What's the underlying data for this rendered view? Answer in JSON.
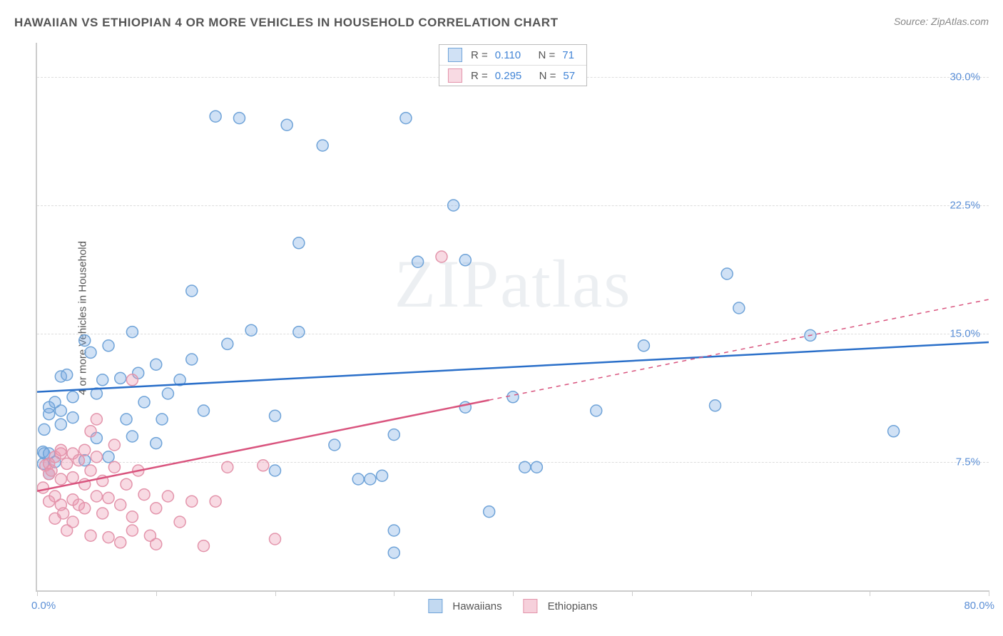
{
  "title": "HAWAIIAN VS ETHIOPIAN 4 OR MORE VEHICLES IN HOUSEHOLD CORRELATION CHART",
  "source": "Source: ZipAtlas.com",
  "watermark": "ZIPatlas",
  "ylabel": "4 or more Vehicles in Household",
  "chart": {
    "type": "scatter",
    "background_color": "#ffffff",
    "grid_color": "#dddddd",
    "axis_color": "#cccccc",
    "tick_label_color": "#5b8fd6",
    "label_color": "#555555",
    "title_color": "#555555",
    "title_fontsize": 17,
    "label_fontsize": 15,
    "tick_fontsize": 15,
    "xlim": [
      0,
      80
    ],
    "ylim": [
      0,
      32
    ],
    "xlim_labels": {
      "min": "0.0%",
      "max": "80.0%"
    },
    "yticks": [
      {
        "value": 7.5,
        "label": "7.5%"
      },
      {
        "value": 15.0,
        "label": "15.0%"
      },
      {
        "value": 22.5,
        "label": "22.5%"
      },
      {
        "value": 30.0,
        "label": "30.0%"
      }
    ],
    "xtick_positions": [
      0,
      10,
      20,
      30,
      40,
      50,
      60,
      70,
      80
    ],
    "marker_radius": 8,
    "marker_stroke_width": 1.5,
    "line_width": 2.5,
    "series": [
      {
        "name": "Hawaiians",
        "fill": "rgba(120,170,225,0.35)",
        "stroke": "#6fa3d8",
        "line_color": "#2a6fc9",
        "R_label": "R =",
        "R": "0.110",
        "N_label": "N =",
        "N": "71",
        "regression": {
          "x1": 0,
          "y1": 11.6,
          "x2": 80,
          "y2": 14.5,
          "solid_until_x": 80
        },
        "points": [
          [
            0.5,
            7.4
          ],
          [
            0.5,
            8.1
          ],
          [
            0.6,
            8.0
          ],
          [
            0.6,
            9.4
          ],
          [
            1,
            10.3
          ],
          [
            1,
            10.7
          ],
          [
            1,
            8.0
          ],
          [
            1,
            6.8
          ],
          [
            1.5,
            11.0
          ],
          [
            1.5,
            7.5
          ],
          [
            2,
            9.7
          ],
          [
            2,
            10.5
          ],
          [
            2,
            12.5
          ],
          [
            2.5,
            12.6
          ],
          [
            3,
            11.3
          ],
          [
            3,
            10.1
          ],
          [
            4,
            14.6
          ],
          [
            4,
            7.6
          ],
          [
            4.5,
            13.9
          ],
          [
            5,
            11.5
          ],
          [
            5,
            8.9
          ],
          [
            5.5,
            12.3
          ],
          [
            6,
            14.3
          ],
          [
            6,
            7.8
          ],
          [
            7,
            12.4
          ],
          [
            7.5,
            10.0
          ],
          [
            8,
            15.1
          ],
          [
            8,
            9.0
          ],
          [
            8.5,
            12.7
          ],
          [
            9,
            11.0
          ],
          [
            10,
            13.2
          ],
          [
            10,
            8.6
          ],
          [
            10.5,
            10.0
          ],
          [
            11,
            11.5
          ],
          [
            12,
            12.3
          ],
          [
            13,
            13.5
          ],
          [
            13,
            17.5
          ],
          [
            14,
            10.5
          ],
          [
            15,
            27.7
          ],
          [
            16,
            14.4
          ],
          [
            17,
            27.6
          ],
          [
            18,
            15.2
          ],
          [
            20,
            10.2
          ],
          [
            20,
            7.0
          ],
          [
            21,
            27.2
          ],
          [
            22,
            20.3
          ],
          [
            22,
            15.1
          ],
          [
            24,
            26.0
          ],
          [
            25,
            8.5
          ],
          [
            27,
            6.5
          ],
          [
            28,
            6.5
          ],
          [
            29,
            6.7
          ],
          [
            30,
            2.2
          ],
          [
            30,
            3.5
          ],
          [
            30,
            9.1
          ],
          [
            31,
            27.6
          ],
          [
            32,
            19.2
          ],
          [
            35,
            22.5
          ],
          [
            36,
            19.3
          ],
          [
            36,
            10.7
          ],
          [
            38,
            4.6
          ],
          [
            40,
            11.3
          ],
          [
            41,
            7.2
          ],
          [
            42,
            7.2
          ],
          [
            47,
            10.5
          ],
          [
            51,
            14.3
          ],
          [
            58,
            18.5
          ],
          [
            59,
            16.5
          ],
          [
            65,
            14.9
          ],
          [
            72,
            9.3
          ],
          [
            57,
            10.8
          ]
        ]
      },
      {
        "name": "Ethiopians",
        "fill": "rgba(235,150,175,0.35)",
        "stroke": "#e394ab",
        "line_color": "#d9547e",
        "R_label": "R =",
        "R": "0.295",
        "N_label": "N =",
        "N": "57",
        "regression": {
          "x1": 0,
          "y1": 5.8,
          "x2": 80,
          "y2": 17.0,
          "solid_until_x": 38
        },
        "points": [
          [
            0.5,
            6.0
          ],
          [
            0.7,
            7.3
          ],
          [
            1,
            6.8
          ],
          [
            1,
            7.4
          ],
          [
            1,
            5.2
          ],
          [
            1.2,
            7.0
          ],
          [
            1.5,
            7.8
          ],
          [
            1.5,
            5.5
          ],
          [
            1.5,
            4.2
          ],
          [
            2,
            8.0
          ],
          [
            2,
            8.2
          ],
          [
            2,
            6.5
          ],
          [
            2,
            5.0
          ],
          [
            2.2,
            4.5
          ],
          [
            2.5,
            7.4
          ],
          [
            2.5,
            3.5
          ],
          [
            3,
            8.0
          ],
          [
            3,
            6.6
          ],
          [
            3,
            5.3
          ],
          [
            3,
            4.0
          ],
          [
            3.5,
            7.6
          ],
          [
            3.5,
            5.0
          ],
          [
            4,
            8.2
          ],
          [
            4,
            6.2
          ],
          [
            4,
            4.8
          ],
          [
            4.5,
            9.3
          ],
          [
            4.5,
            7.0
          ],
          [
            4.5,
            3.2
          ],
          [
            5,
            7.8
          ],
          [
            5,
            5.5
          ],
          [
            5,
            10.0
          ],
          [
            5.5,
            6.4
          ],
          [
            5.5,
            4.5
          ],
          [
            6,
            3.1
          ],
          [
            6,
            5.4
          ],
          [
            6.5,
            7.2
          ],
          [
            6.5,
            8.5
          ],
          [
            7,
            5.0
          ],
          [
            7,
            2.8
          ],
          [
            7.5,
            6.2
          ],
          [
            8,
            4.3
          ],
          [
            8,
            3.5
          ],
          [
            8.5,
            7.0
          ],
          [
            8,
            12.3
          ],
          [
            9,
            5.6
          ],
          [
            9.5,
            3.2
          ],
          [
            10,
            4.8
          ],
          [
            10,
            2.7
          ],
          [
            11,
            5.5
          ],
          [
            12,
            4.0
          ],
          [
            13,
            5.2
          ],
          [
            14,
            2.6
          ],
          [
            15,
            5.2
          ],
          [
            16,
            7.2
          ],
          [
            19,
            7.3
          ],
          [
            20,
            3.0
          ],
          [
            34,
            19.5
          ]
        ]
      }
    ]
  },
  "legend": {
    "items": [
      {
        "name": "Hawaiians",
        "fill": "rgba(120,170,225,0.45)",
        "stroke": "#6fa3d8"
      },
      {
        "name": "Ethiopians",
        "fill": "rgba(235,150,175,0.45)",
        "stroke": "#e394ab"
      }
    ]
  }
}
